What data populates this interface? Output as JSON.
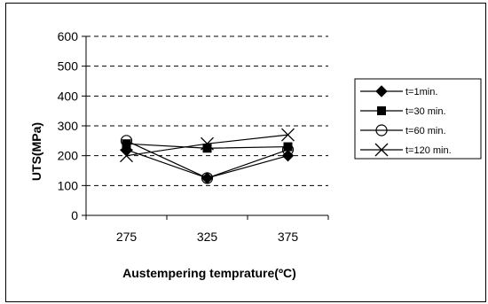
{
  "chart_data": {
    "type": "line",
    "title": "",
    "xlabel": "Austempering temprature(ºC)",
    "ylabel": "UTS(MPa)",
    "x": [
      275,
      325,
      375
    ],
    "x_tick_labels": [
      "275",
      "325",
      "375"
    ],
    "ylim": [
      0,
      600
    ],
    "y_ticks": [
      0,
      100,
      200,
      300,
      400,
      500,
      600
    ],
    "y_tick_labels": [
      "0",
      "100",
      "200",
      "300",
      "400",
      "500",
      "600"
    ],
    "grid": "horizontal dashed",
    "legend_position": "right",
    "series": [
      {
        "name": "t=1min.",
        "marker": "diamond",
        "values": [
          220,
          125,
          200
        ]
      },
      {
        "name": "t=30 min.",
        "marker": "square",
        "values": [
          240,
          225,
          230
        ]
      },
      {
        "name": "t=60 min.",
        "marker": "circle-open",
        "values": [
          250,
          125,
          220
        ]
      },
      {
        "name": "t=120 min.",
        "marker": "x",
        "values": [
          200,
          240,
          270
        ]
      }
    ]
  }
}
